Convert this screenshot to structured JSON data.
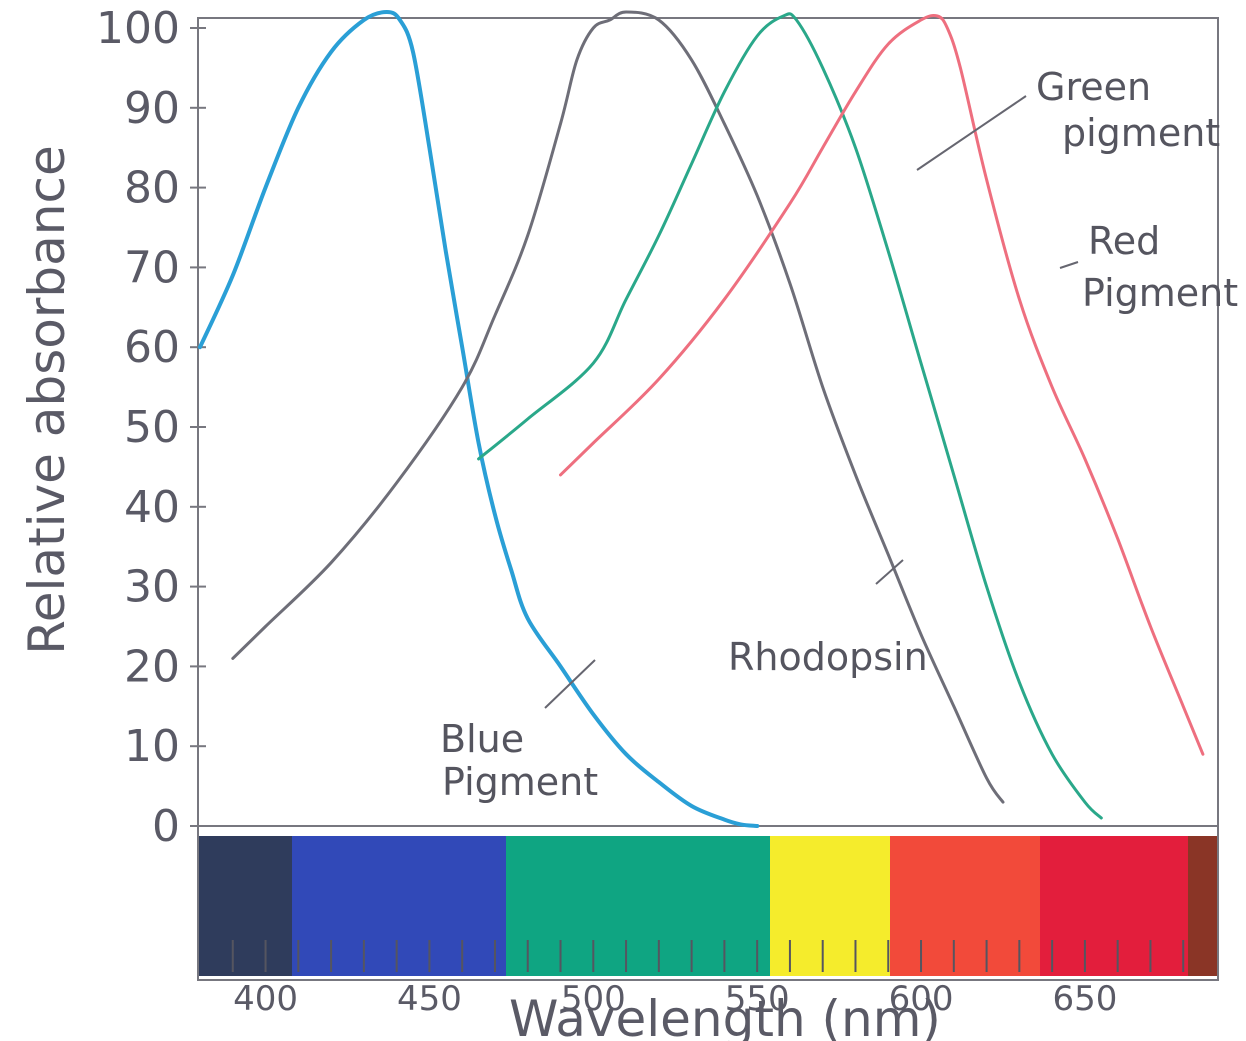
{
  "chart_data": {
    "type": "line",
    "title": "",
    "xlabel": "Wavelength (nm)",
    "ylabel": "Relative absorbance",
    "xlim": [
      380,
      690
    ],
    "ylim": [
      0,
      100
    ],
    "yticks": [
      0,
      10,
      20,
      30,
      40,
      50,
      60,
      70,
      80,
      90,
      100
    ],
    "xticks": [
      400,
      450,
      500,
      550,
      600,
      650
    ],
    "grid": false,
    "legend": "none",
    "series": [
      {
        "name": "Blue pigment",
        "color": "#2a9fd6",
        "x": [
          380,
          390,
          400,
          410,
          420,
          430,
          437,
          441,
          445,
          450,
          455,
          460,
          465,
          470,
          475,
          480,
          490,
          500,
          510,
          520,
          530,
          540,
          545,
          550
        ],
        "y": [
          60,
          69,
          80,
          90,
          97,
          101,
          102,
          101,
          97,
          85,
          72,
          60,
          48,
          39,
          32,
          26,
          20,
          14,
          9,
          5.5,
          2.5,
          0.8,
          0.2,
          0
        ]
      },
      {
        "name": "Rhodopsin",
        "color": "#6e6e78",
        "x": [
          390,
          400,
          420,
          440,
          460,
          470,
          480,
          490,
          495,
          500,
          505,
          510,
          520,
          530,
          540,
          550,
          560,
          570,
          580,
          590,
          600,
          610,
          620,
          625
        ],
        "y": [
          21,
          25,
          33,
          43,
          55,
          64,
          74,
          88,
          96,
          100,
          101,
          102,
          101,
          96,
          88,
          79,
          68,
          55,
          44,
          34,
          24,
          15,
          6,
          3
        ]
      },
      {
        "name": "Green pigment",
        "color": "#2aa88a",
        "x": [
          465,
          480,
          500,
          510,
          520,
          530,
          540,
          550,
          558,
          562,
          570,
          580,
          590,
          600,
          610,
          620,
          630,
          640,
          650,
          655
        ],
        "y": [
          46,
          51,
          58,
          66,
          74,
          83,
          92,
          99,
          101.5,
          101,
          95,
          85,
          72,
          58,
          44,
          30,
          18,
          9,
          3,
          1
        ]
      },
      {
        "name": "Red pigment",
        "color": "#ee6f7f",
        "x": [
          490,
          500,
          520,
          540,
          560,
          570,
          580,
          590,
          600,
          605,
          608,
          612,
          620,
          630,
          640,
          650,
          660,
          670,
          680,
          686
        ],
        "y": [
          44,
          48,
          56,
          66,
          78,
          85,
          92,
          98,
          101,
          101.5,
          100,
          95,
          81,
          66,
          55,
          46,
          36,
          25,
          15,
          9
        ]
      }
    ],
    "annotations": [
      {
        "lines": [
          "Blue",
          "Pigment"
        ]
      },
      {
        "lines": [
          "Rhodopsin"
        ]
      },
      {
        "lines": [
          "Green",
          "pigment"
        ]
      },
      {
        "lines": [
          "Red",
          "Pigment"
        ]
      }
    ],
    "spectrum_colors": [
      "#2f3c5c",
      "#3149b8",
      "#0fa582",
      "#f5ec2c",
      "#f24a3a",
      "#e31e3c",
      "#8a3526"
    ]
  }
}
